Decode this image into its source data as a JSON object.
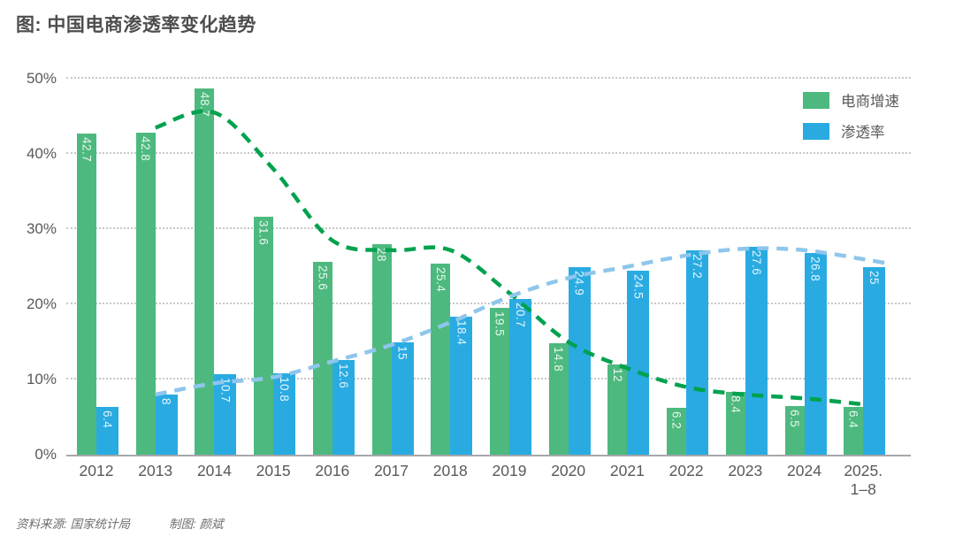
{
  "title": "图: 中国电商渗透率变化趋势",
  "legend": [
    {
      "label": "电商增速",
      "color": "#4db97e"
    },
    {
      "label": "渗透率",
      "color": "#29abe2"
    }
  ],
  "footer": {
    "source": "资料来源: 国家统计局",
    "credit": "制图: 颜斌"
  },
  "chart_data": {
    "type": "bar",
    "title": "图: 中国电商渗透率变化趋势",
    "categories": [
      "2012",
      "2013",
      "2014",
      "2015",
      "2016",
      "2017",
      "2018",
      "2019",
      "2020",
      "2021",
      "2022",
      "2023",
      "2024",
      "2025.\n1–8"
    ],
    "series": [
      {
        "name": "电商增速",
        "color": "#4db97e",
        "values": [
          42.7,
          42.8,
          48.7,
          31.6,
          25.6,
          28,
          25.4,
          19.5,
          14.8,
          12,
          6.2,
          8.4,
          6.5,
          6.4
        ]
      },
      {
        "name": "渗透率",
        "color": "#29abe2",
        "values": [
          6.4,
          8,
          10.7,
          10.8,
          12.6,
          15,
          18.4,
          20.7,
          24.9,
          24.5,
          27.2,
          27.6,
          26.8,
          25
        ]
      }
    ],
    "trend_lines": [
      {
        "name": "电商增速趋势线",
        "color": "#00a24e",
        "style": "dashed",
        "points": [
          [
            1,
            43.5
          ],
          [
            2,
            45.5
          ],
          [
            3,
            38
          ],
          [
            4,
            28.5
          ],
          [
            5,
            27.2
          ],
          [
            6,
            27.2
          ],
          [
            7,
            21.5
          ],
          [
            8,
            15
          ],
          [
            9,
            11.5
          ],
          [
            10,
            9
          ],
          [
            11,
            8
          ],
          [
            12,
            7.5
          ],
          [
            13,
            6.7
          ]
        ]
      },
      {
        "name": "渗透率趋势线",
        "color": "#8ec6ec",
        "style": "dashed",
        "points": [
          [
            1,
            8
          ],
          [
            2,
            9.5
          ],
          [
            3,
            10.3
          ],
          [
            4,
            12.4
          ],
          [
            5,
            14.6
          ],
          [
            6,
            17.6
          ],
          [
            7,
            21
          ],
          [
            8,
            23.5
          ],
          [
            9,
            25
          ],
          [
            10,
            26.5
          ],
          [
            11,
            27.4
          ],
          [
            12,
            27.2
          ],
          [
            13,
            26
          ],
          [
            13.45,
            25.4
          ]
        ]
      }
    ],
    "ylim": [
      0,
      50
    ],
    "yticks": [
      {
        "value": 0,
        "label": "0%"
      },
      {
        "value": 10,
        "label": "10%"
      },
      {
        "value": 20,
        "label": "20%"
      },
      {
        "value": 30,
        "label": "30%"
      },
      {
        "value": 40,
        "label": "40%"
      },
      {
        "value": 50,
        "label": "50%"
      }
    ],
    "grid": "horizontal-dotted",
    "legend_position": "top-right"
  }
}
